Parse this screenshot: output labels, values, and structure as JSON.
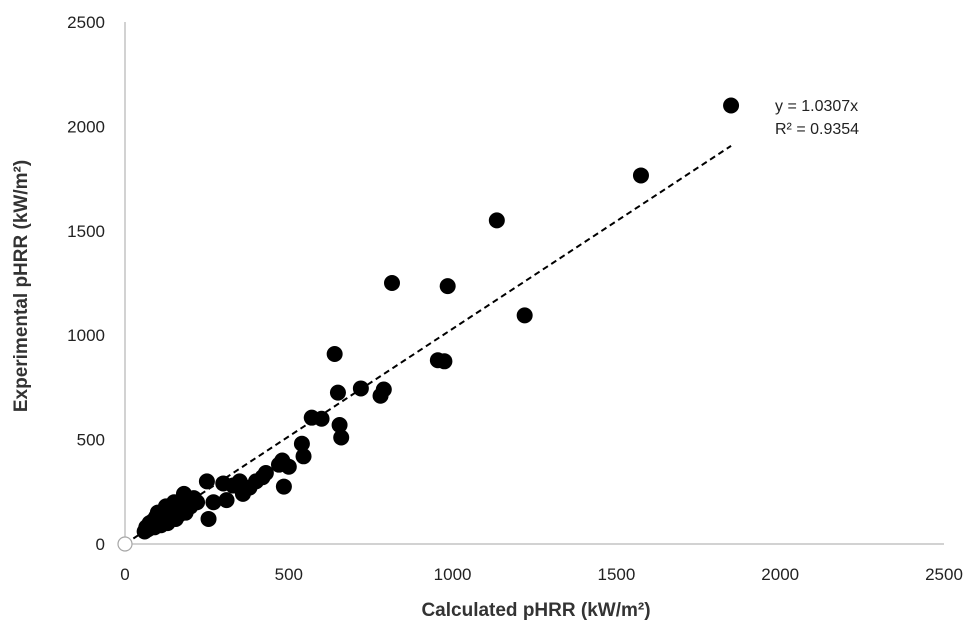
{
  "chart_data": {
    "type": "scatter",
    "title": "",
    "xlabel": "Calculated pHRR (kW/m²)",
    "ylabel": "Experimental pHRR (kW/m²)",
    "xlim": [
      0,
      2500
    ],
    "ylim": [
      0,
      2500
    ],
    "xticks": [
      0,
      500,
      1000,
      1500,
      2000,
      2500
    ],
    "yticks": [
      0,
      500,
      1000,
      1500,
      2000,
      2500
    ],
    "grid": false,
    "legend": "none",
    "marker_color": "#000000",
    "trendline": {
      "equation": "y = 1.0307x",
      "r_squared": "R² = 0.9354",
      "slope": 1.0307,
      "x_range": [
        0,
        1850
      ],
      "style": "dashed",
      "color": "#000000"
    },
    "origin_point": {
      "x": 0,
      "y": 0,
      "style": "hollow"
    },
    "points": [
      {
        "x": 60,
        "y": 60
      },
      {
        "x": 65,
        "y": 80
      },
      {
        "x": 70,
        "y": 70
      },
      {
        "x": 75,
        "y": 100
      },
      {
        "x": 80,
        "y": 90
      },
      {
        "x": 85,
        "y": 110
      },
      {
        "x": 90,
        "y": 80
      },
      {
        "x": 95,
        "y": 130
      },
      {
        "x": 100,
        "y": 100
      },
      {
        "x": 100,
        "y": 150
      },
      {
        "x": 105,
        "y": 120
      },
      {
        "x": 110,
        "y": 90
      },
      {
        "x": 115,
        "y": 140
      },
      {
        "x": 120,
        "y": 110
      },
      {
        "x": 125,
        "y": 180
      },
      {
        "x": 130,
        "y": 100
      },
      {
        "x": 135,
        "y": 160
      },
      {
        "x": 140,
        "y": 130
      },
      {
        "x": 145,
        "y": 150
      },
      {
        "x": 150,
        "y": 200
      },
      {
        "x": 155,
        "y": 120
      },
      {
        "x": 160,
        "y": 170
      },
      {
        "x": 165,
        "y": 140
      },
      {
        "x": 170,
        "y": 190
      },
      {
        "x": 175,
        "y": 160
      },
      {
        "x": 180,
        "y": 240
      },
      {
        "x": 185,
        "y": 150
      },
      {
        "x": 190,
        "y": 200
      },
      {
        "x": 200,
        "y": 180
      },
      {
        "x": 210,
        "y": 220
      },
      {
        "x": 220,
        "y": 200
      },
      {
        "x": 250,
        "y": 300
      },
      {
        "x": 255,
        "y": 120
      },
      {
        "x": 270,
        "y": 200
      },
      {
        "x": 300,
        "y": 290
      },
      {
        "x": 310,
        "y": 210
      },
      {
        "x": 330,
        "y": 280
      },
      {
        "x": 350,
        "y": 300
      },
      {
        "x": 360,
        "y": 240
      },
      {
        "x": 380,
        "y": 270
      },
      {
        "x": 400,
        "y": 300
      },
      {
        "x": 420,
        "y": 320
      },
      {
        "x": 430,
        "y": 340
      },
      {
        "x": 470,
        "y": 380
      },
      {
        "x": 480,
        "y": 400
      },
      {
        "x": 485,
        "y": 275
      },
      {
        "x": 500,
        "y": 370
      },
      {
        "x": 540,
        "y": 480
      },
      {
        "x": 545,
        "y": 420
      },
      {
        "x": 570,
        "y": 605
      },
      {
        "x": 600,
        "y": 600
      },
      {
        "x": 640,
        "y": 910
      },
      {
        "x": 650,
        "y": 725
      },
      {
        "x": 655,
        "y": 570
      },
      {
        "x": 660,
        "y": 510
      },
      {
        "x": 720,
        "y": 745
      },
      {
        "x": 780,
        "y": 710
      },
      {
        "x": 790,
        "y": 740
      },
      {
        "x": 815,
        "y": 1250
      },
      {
        "x": 955,
        "y": 880
      },
      {
        "x": 975,
        "y": 875
      },
      {
        "x": 985,
        "y": 1235
      },
      {
        "x": 1135,
        "y": 1550
      },
      {
        "x": 1220,
        "y": 1095
      },
      {
        "x": 1575,
        "y": 1765
      },
      {
        "x": 1850,
        "y": 2100
      }
    ]
  }
}
